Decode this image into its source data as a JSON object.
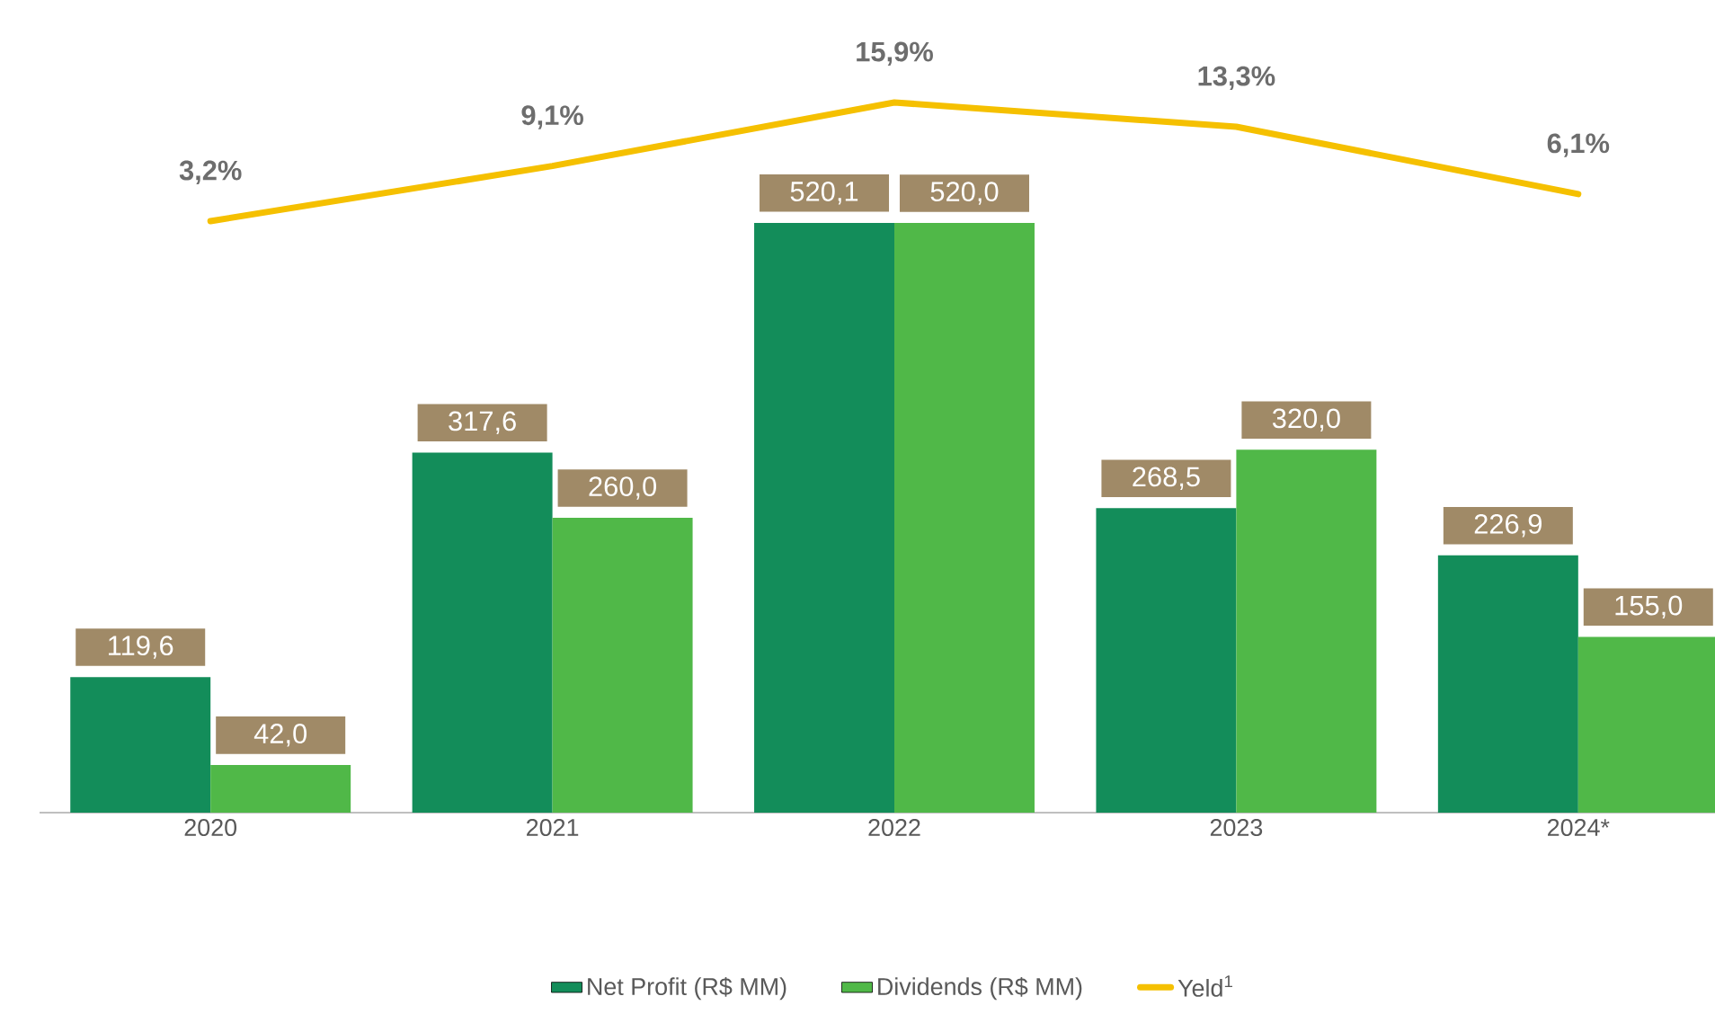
{
  "chart_data": {
    "type": "bar",
    "categories": [
      "2020",
      "2021",
      "2022",
      "2023",
      "2024*"
    ],
    "series": [
      {
        "name": "Net Profit (R$ MM)",
        "color": "#138d5a",
        "values": [
          119.6,
          317.6,
          520.1,
          268.5,
          226.9
        ],
        "value_labels": [
          "119,6",
          "317,6",
          "520,1",
          "268,5",
          "226,9"
        ]
      },
      {
        "name": "Dividends (R$ MM)",
        "color": "#50b848",
        "values": [
          42.0,
          260.0,
          520.0,
          320.0,
          155.0
        ],
        "value_labels": [
          "42,0",
          "260,0",
          "520,0",
          "320,0",
          "155,0"
        ]
      },
      {
        "name": "Yeld$^{1}$",
        "type": "line",
        "axis": "y2",
        "color": "#f5c000",
        "values": [
          3.2,
          9.1,
          15.9,
          13.3,
          6.1
        ],
        "value_labels": [
          "3,2%",
          "9,1%",
          "15,9%",
          "13,3%",
          "6,1%"
        ]
      }
    ],
    "tick_labels": "x",
    "legend": "bottom"
  }
}
